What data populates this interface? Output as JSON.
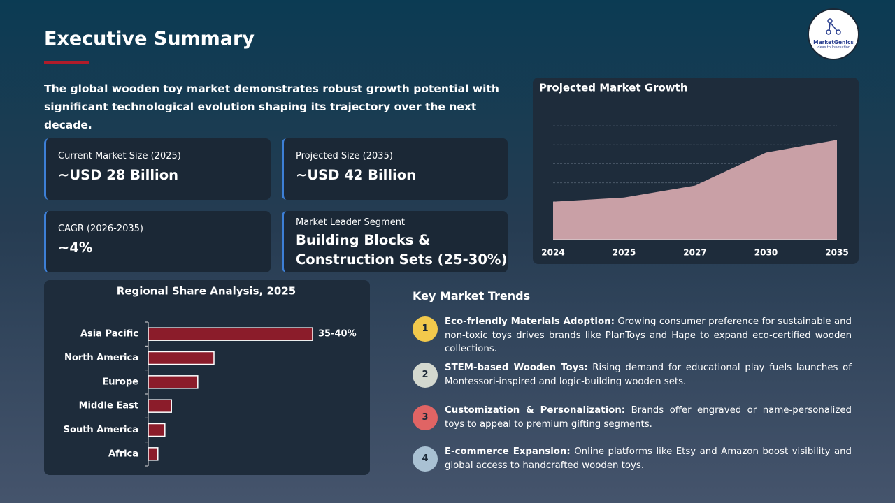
{
  "header": {
    "title": "Executive Summary"
  },
  "logo": {
    "name": "MarketGenics",
    "tagline": "Ideas to Innovation"
  },
  "summary": "The global wooden toy market demonstrates robust growth potential with significant technological evolution shaping its trajectory over the next decade.",
  "kpis": [
    {
      "label": "Current Market Size (2025)",
      "value": "~USD 28 Billion"
    },
    {
      "label": "Projected Size (2035)",
      "value": "~USD 42 Billion"
    },
    {
      "label": "CAGR (2026-2035)",
      "value": "~4%"
    },
    {
      "label": "Market Leader Segment",
      "value": "Building Blocks & Construction Sets (25-30%)"
    }
  ],
  "trends": {
    "title": "Key Market Trends",
    "items": [
      {
        "number": "1",
        "title": "Eco-friendly Materials Adoption:",
        "text": "Growing consumer preference for sustainable and non-toxic toys drives brands like PlanToys and Hape to expand eco-certified wooden collections.",
        "color": "#f2c94c"
      },
      {
        "number": "2",
        "title": "STEM-based Wooden Toys:",
        "text": "Rising demand for educational play fuels launches of Montessori-inspired and logic-building wooden sets.",
        "color": "#d3d8cf"
      },
      {
        "number": "3",
        "title": "Customization & Personalization:",
        "text": "Brands offer engraved or name-personalized toys to appeal to premium gifting segments.",
        "color": "#e06464"
      },
      {
        "number": "4",
        "title": "E-commerce Expansion:",
        "text": "Online platforms like Etsy and Amazon boost visibility and global access to handcrafted wooden toys.",
        "color": "#a9c1d3"
      }
    ]
  },
  "chart_data": [
    {
      "type": "hbar",
      "title": "Regional Share Analysis, 2025",
      "categories": [
        "Asia Pacific",
        "North America",
        "Europe",
        "Middle East",
        "South America",
        "Africa"
      ],
      "values": [
        37.5,
        15,
        11.3,
        5.3,
        3.8,
        2.2
      ],
      "value_labels": [
        "35-40%",
        null,
        null,
        null,
        null,
        null
      ],
      "color": "#8b1c2a",
      "xlim": [
        0,
        45
      ]
    },
    {
      "type": "area",
      "title": "Projected Market Growth",
      "categories": [
        "2024",
        "2025",
        "2027",
        "2030",
        "2035"
      ],
      "values": [
        2.0,
        2.22,
        2.85,
        4.59,
        5.26
      ],
      "color": "#c9a0a6",
      "ylim": [
        0,
        7
      ],
      "grid_lines": [
        1,
        2,
        3,
        4,
        5,
        6
      ]
    }
  ]
}
